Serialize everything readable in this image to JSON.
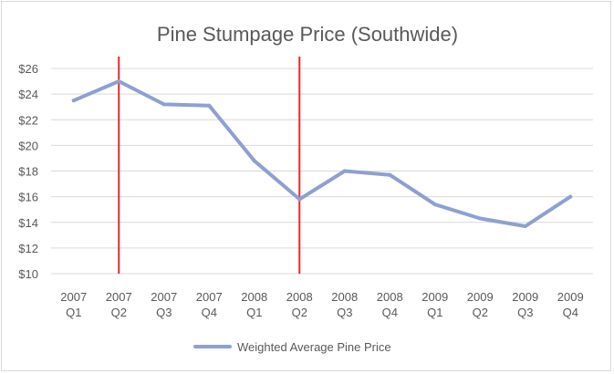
{
  "chart_data": {
    "type": "line",
    "title": "Pine Stumpage Price (Southwide)",
    "xlabel": "",
    "ylabel": "",
    "categories": [
      [
        "2007",
        "Q1"
      ],
      [
        "2007",
        "Q2"
      ],
      [
        "2007",
        "Q3"
      ],
      [
        "2007",
        "Q4"
      ],
      [
        "2008",
        "Q1"
      ],
      [
        "2008",
        "Q2"
      ],
      [
        "2008",
        "Q3"
      ],
      [
        "2008",
        "Q4"
      ],
      [
        "2009",
        "Q1"
      ],
      [
        "2009",
        "Q2"
      ],
      [
        "2009",
        "Q3"
      ],
      [
        "2009",
        "Q4"
      ]
    ],
    "series": [
      {
        "name": "Weighted Average Pine Price",
        "color": "#8ea0d2",
        "values": [
          23.5,
          25.0,
          23.2,
          23.1,
          18.8,
          15.8,
          18.0,
          17.7,
          15.4,
          14.3,
          13.7,
          16.0
        ]
      }
    ],
    "ylim": [
      10,
      26
    ],
    "yticks": [
      10,
      12,
      14,
      16,
      18,
      20,
      22,
      24,
      26
    ],
    "ytick_labels": [
      "$10",
      "$12",
      "$14",
      "$16",
      "$18",
      "$20",
      "$22",
      "$24",
      "$26"
    ],
    "grid": true,
    "legend": "bottom",
    "markers": {
      "color": "#e8292b",
      "category_indices": [
        1,
        5
      ]
    }
  }
}
